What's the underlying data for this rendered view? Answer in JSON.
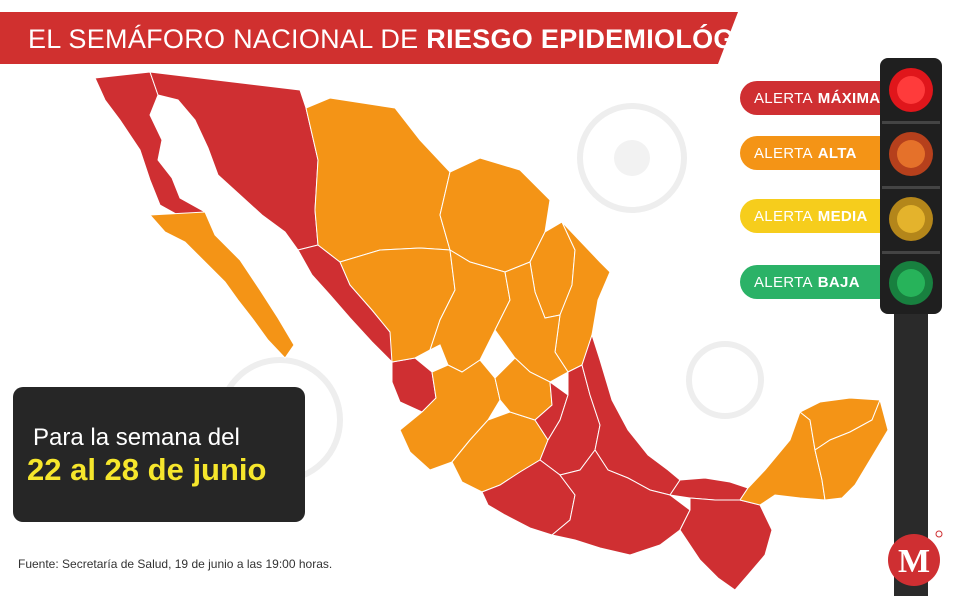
{
  "title": {
    "normal": "EL SEMÁFORO NACIONAL DE ",
    "bold": "RIESGO EPIDEMIOLÓGICO"
  },
  "legend": [
    {
      "prefix": "ALERTA",
      "level": "MÁXIMA",
      "color": "#cf2f32"
    },
    {
      "prefix": "ALERTA",
      "level": "ALTA",
      "color": "#f49416"
    },
    {
      "prefix": "ALERTA",
      "level": "MEDIA",
      "color": "#f6cd1c"
    },
    {
      "prefix": "ALERTA",
      "level": "BAJA",
      "color": "#2bb267"
    }
  ],
  "week": {
    "line1": "Para la semana del",
    "line2": "22 al 28 de junio"
  },
  "source": "Fuente: Secretaría de Salud, 19 de junio a las 19:00 horas.",
  "logo_letter": "M",
  "colors": {
    "red": "#cf2f32",
    "orange": "#f49416",
    "banner": "#d0302f",
    "box": "#262626",
    "highlight": "#f6e62c"
  },
  "map_regions": {
    "maxima": [
      "Baja California",
      "Sonora",
      "Sinaloa",
      "Nayarit",
      "Ciudad de México",
      "Estado de México",
      "Morelos",
      "Puebla",
      "Tlaxcala",
      "Hidalgo",
      "Veracruz",
      "Guerrero",
      "Oaxaca",
      "Chiapas",
      "Tabasco",
      "Querétaro"
    ],
    "alta": [
      "Baja California Sur",
      "Chihuahua",
      "Coahuila",
      "Nuevo León",
      "Tamaulipas",
      "Durango",
      "Zacatecas",
      "San Luis Potosí",
      "Aguascalientes",
      "Jalisco",
      "Colima",
      "Michoacán",
      "Guanajuato",
      "Campeche",
      "Yucatán",
      "Quintana Roo"
    ]
  }
}
